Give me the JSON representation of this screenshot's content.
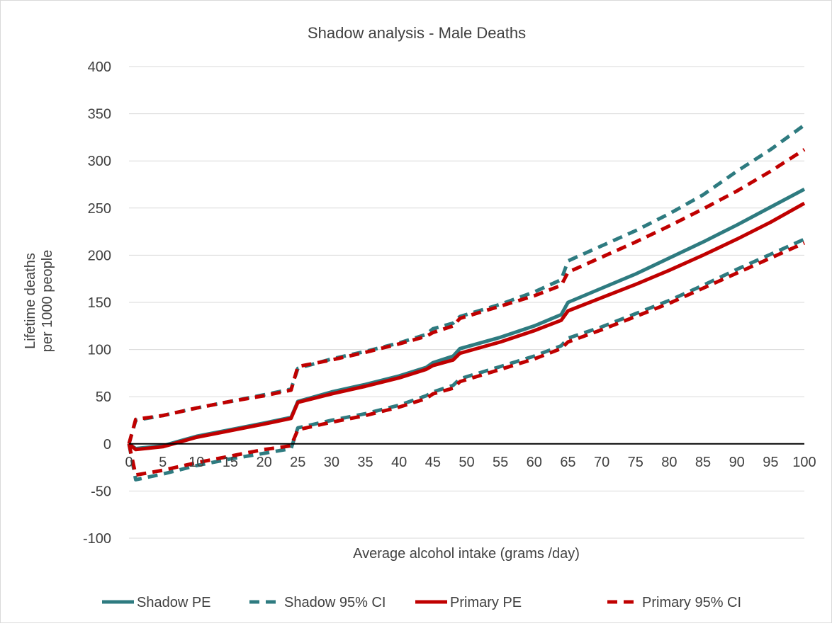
{
  "chart_data": {
    "type": "line",
    "title": "Shadow analysis - Male Deaths",
    "xlabel": "Average alcohol intake (grams /day)",
    "ylabel_lines": [
      "Lifetime deaths",
      "per 1000 people"
    ],
    "xlim": [
      0,
      100
    ],
    "ylim": [
      -100,
      400
    ],
    "x_ticks": [
      "0",
      "5",
      "10",
      "15",
      "20",
      "25",
      "30",
      "35",
      "40",
      "45",
      "50",
      "55",
      "60",
      "65",
      "70",
      "75",
      "80",
      "85",
      "90",
      "95",
      "100"
    ],
    "y_ticks": [
      "400",
      "350",
      "300",
      "250",
      "200",
      "150",
      "100",
      "50",
      "0",
      "-50",
      "-100"
    ],
    "grid": "horizontal",
    "legend_position": "bottom",
    "series": [
      {
        "name": "Shadow PE",
        "color": "#2e7b80",
        "style": "solid",
        "points": [
          [
            0,
            0
          ],
          [
            1,
            -5
          ],
          [
            5,
            -2
          ],
          [
            10,
            8
          ],
          [
            15,
            15
          ],
          [
            20,
            22
          ],
          [
            24,
            28
          ],
          [
            25,
            45
          ],
          [
            30,
            55
          ],
          [
            35,
            63
          ],
          [
            40,
            72
          ],
          [
            44,
            81
          ],
          [
            45,
            86
          ],
          [
            48,
            93
          ],
          [
            49,
            101
          ],
          [
            55,
            113
          ],
          [
            60,
            125
          ],
          [
            64,
            137
          ],
          [
            65,
            150
          ],
          [
            70,
            165
          ],
          [
            75,
            180
          ],
          [
            80,
            197
          ],
          [
            85,
            214
          ],
          [
            90,
            232
          ],
          [
            95,
            251
          ],
          [
            100,
            270
          ]
        ]
      },
      {
        "name": "Shadow 95% CI",
        "color": "#2e7b80",
        "style": "dashed",
        "points": [
          [
            0,
            0
          ],
          [
            1,
            -38
          ],
          [
            5,
            -32
          ],
          [
            10,
            -23
          ],
          [
            15,
            -16
          ],
          [
            20,
            -10
          ],
          [
            24,
            -5
          ],
          [
            25,
            17
          ],
          [
            30,
            25
          ],
          [
            35,
            32
          ],
          [
            40,
            41
          ],
          [
            44,
            51
          ],
          [
            45,
            55
          ],
          [
            48,
            62
          ],
          [
            49,
            69
          ],
          [
            55,
            82
          ],
          [
            60,
            93
          ],
          [
            64,
            104
          ],
          [
            65,
            112
          ],
          [
            70,
            124
          ],
          [
            75,
            138
          ],
          [
            80,
            152
          ],
          [
            85,
            168
          ],
          [
            90,
            185
          ],
          [
            95,
            201
          ],
          [
            100,
            217
          ]
        ]
      },
      {
        "name": "Shadow 95% CI",
        "color": "#2e7b80",
        "style": "dashed",
        "points": [
          [
            0,
            0
          ],
          [
            1,
            25
          ],
          [
            5,
            30
          ],
          [
            10,
            38
          ],
          [
            15,
            45
          ],
          [
            20,
            52
          ],
          [
            24,
            58
          ],
          [
            25,
            80
          ],
          [
            30,
            90
          ],
          [
            35,
            98
          ],
          [
            40,
            107
          ],
          [
            44,
            116
          ],
          [
            45,
            122
          ],
          [
            48,
            128
          ],
          [
            49,
            135
          ],
          [
            55,
            148
          ],
          [
            60,
            161
          ],
          [
            64,
            174
          ],
          [
            65,
            194
          ],
          [
            70,
            210
          ],
          [
            75,
            226
          ],
          [
            80,
            244
          ],
          [
            85,
            264
          ],
          [
            90,
            289
          ],
          [
            95,
            312
          ],
          [
            100,
            338
          ]
        ]
      },
      {
        "name": "Primary PE",
        "color": "#c00000",
        "style": "solid",
        "points": [
          [
            0,
            0
          ],
          [
            1,
            -6
          ],
          [
            5,
            -3
          ],
          [
            10,
            7
          ],
          [
            15,
            14
          ],
          [
            20,
            21
          ],
          [
            24,
            27
          ],
          [
            25,
            44
          ],
          [
            30,
            53
          ],
          [
            35,
            61
          ],
          [
            40,
            70
          ],
          [
            44,
            79
          ],
          [
            45,
            83
          ],
          [
            48,
            89
          ],
          [
            49,
            96
          ],
          [
            55,
            108
          ],
          [
            60,
            120
          ],
          [
            64,
            131
          ],
          [
            65,
            141
          ],
          [
            70,
            155
          ],
          [
            75,
            169
          ],
          [
            80,
            184
          ],
          [
            85,
            200
          ],
          [
            90,
            217
          ],
          [
            95,
            235
          ],
          [
            100,
            255
          ]
        ]
      },
      {
        "name": "Primary 95% CI",
        "color": "#c00000",
        "style": "dashed",
        "points": [
          [
            0,
            0
          ],
          [
            1,
            -33
          ],
          [
            5,
            -28
          ],
          [
            10,
            -20
          ],
          [
            15,
            -13
          ],
          [
            20,
            -6
          ],
          [
            24,
            -2
          ],
          [
            25,
            15
          ],
          [
            30,
            23
          ],
          [
            35,
            30
          ],
          [
            40,
            39
          ],
          [
            44,
            48
          ],
          [
            45,
            53
          ],
          [
            48,
            59
          ],
          [
            49,
            66
          ],
          [
            55,
            79
          ],
          [
            60,
            90
          ],
          [
            64,
            101
          ],
          [
            65,
            108
          ],
          [
            70,
            121
          ],
          [
            75,
            135
          ],
          [
            80,
            149
          ],
          [
            85,
            165
          ],
          [
            90,
            181
          ],
          [
            95,
            197
          ],
          [
            100,
            213
          ]
        ]
      },
      {
        "name": "Primary 95% CI",
        "color": "#c00000",
        "style": "dashed",
        "points": [
          [
            0,
            0
          ],
          [
            1,
            26
          ],
          [
            5,
            30
          ],
          [
            10,
            38
          ],
          [
            15,
            45
          ],
          [
            20,
            51
          ],
          [
            24,
            57
          ],
          [
            25,
            82
          ],
          [
            30,
            89
          ],
          [
            35,
            97
          ],
          [
            40,
            106
          ],
          [
            44,
            114
          ],
          [
            45,
            118
          ],
          [
            48,
            125
          ],
          [
            49,
            133
          ],
          [
            55,
            146
          ],
          [
            60,
            157
          ],
          [
            64,
            168
          ],
          [
            65,
            182
          ],
          [
            70,
            198
          ],
          [
            75,
            214
          ],
          [
            80,
            231
          ],
          [
            85,
            249
          ],
          [
            90,
            268
          ],
          [
            95,
            289
          ],
          [
            100,
            312
          ]
        ]
      }
    ],
    "legend": [
      {
        "label": "Shadow PE",
        "color": "#2e7b80",
        "style": "solid"
      },
      {
        "label": "Shadow 95% CI",
        "color": "#2e7b80",
        "style": "dashed"
      },
      {
        "label": "Primary PE",
        "color": "#c00000",
        "style": "solid"
      },
      {
        "label": "Primary 95% CI",
        "color": "#c00000",
        "style": "dashed"
      }
    ]
  }
}
